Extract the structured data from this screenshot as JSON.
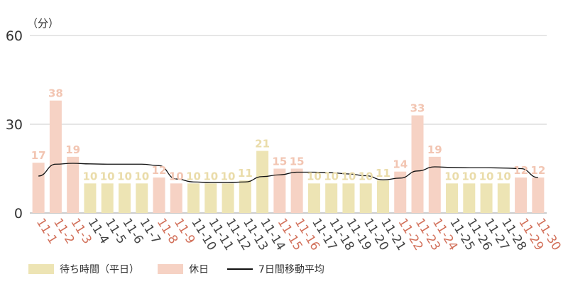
{
  "chart_data": {
    "type": "bar",
    "unit_label": "（分）",
    "ylim": [
      0,
      60
    ],
    "yticks": [
      0,
      30,
      60
    ],
    "grid": true,
    "legend_position": "bottom-left",
    "categories": [
      "11-1",
      "11-2",
      "11-3",
      "11-4",
      "11-5",
      "11-6",
      "11-7",
      "11-8",
      "11-9",
      "11-10",
      "11-11",
      "11-12",
      "11-13",
      "11-14",
      "11-15",
      "11-16",
      "11-17",
      "11-18",
      "11-19",
      "11-20",
      "11-21",
      "11-22",
      "11-23",
      "11-24",
      "11-25",
      "11-26",
      "11-27",
      "11-28",
      "11-29",
      "11-30"
    ],
    "values": [
      17,
      38,
      19,
      10,
      10,
      10,
      10,
      12,
      10,
      10,
      10,
      10,
      11,
      21,
      15,
      15,
      10,
      10,
      10,
      10,
      11,
      14,
      33,
      19,
      10,
      10,
      10,
      10,
      12,
      12
    ],
    "holiday": [
      true,
      true,
      true,
      false,
      false,
      false,
      false,
      true,
      true,
      false,
      false,
      false,
      false,
      false,
      true,
      true,
      false,
      false,
      false,
      false,
      false,
      true,
      true,
      true,
      false,
      false,
      false,
      false,
      true,
      true
    ],
    "series": [
      {
        "name": "待ち時間（平日）",
        "color": "#ede4b4",
        "label_color": "#eadcaa"
      },
      {
        "name": "休日",
        "color": "#f6d2c4",
        "label_color": "#f2c5b2",
        "tick_label_color": "#d2705a"
      },
      {
        "name": "7日間移動平均",
        "type": "line",
        "color": "#111111",
        "values": [
          12.5,
          16.5,
          16.8,
          16.6,
          16.5,
          16.5,
          16.5,
          16.0,
          11.5,
          10.5,
          10.3,
          10.3,
          10.5,
          12.3,
          12.9,
          13.8,
          13.8,
          13.6,
          13.2,
          12.6,
          11.2,
          11.8,
          14.2,
          15.6,
          15.4,
          15.3,
          15.3,
          15.2,
          15.0,
          12.0
        ]
      }
    ]
  }
}
